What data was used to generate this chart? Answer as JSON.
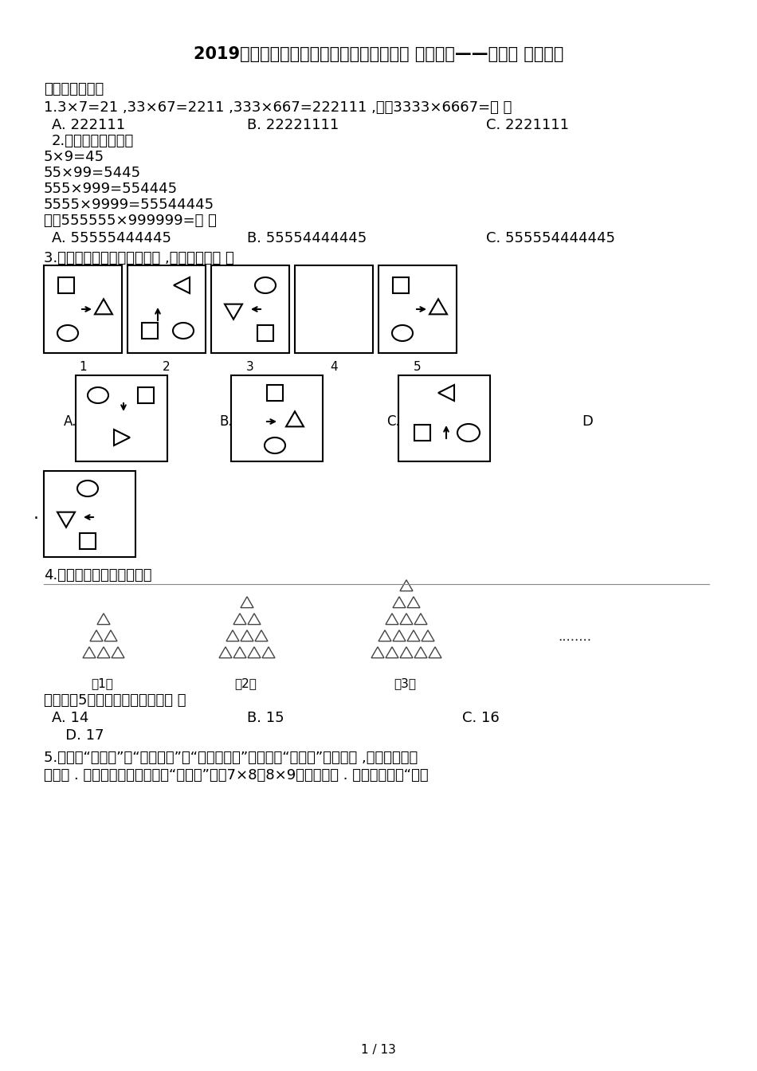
{
  "title": "2019年人教版小学数学六年级上册第八单元 数学广角——数与形 同步训练",
  "section1": "一、单项选择题",
  "q1_text": "1.3×7=21 ,33×67=2211 ,333×667=222111 ,那么3333×6667=［ ］",
  "q1_a": "A. 222111",
  "q1_b": "B. 22221111",
  "q1_c": "C. 2221111",
  "q2_intro": "2.观察下面的算式：",
  "q2_line1": "5×9=45",
  "q2_line2": "55×99=5445",
  "q2_line3": "555×999=554445",
  "q2_line4": "5555×9999=55544445",
  "q2_line5": "那么555555×999999=［ ］",
  "q2_a": "A. 55555444445",
  "q2_b": "B. 55554444445",
  "q2_c": "C. 555554444445",
  "q3_text": "3.根据下面几幅图的排列规律 ,第四幅图是［ ］",
  "q4_text": "4.按如下规律摇放三角形：",
  "q4_answer": "那么第［5］堆三角形的个数为［ ］",
  "q4_a": "A. 14",
  "q4_b": "B. 15",
  "q4_c": "C. 16",
  "q4_d": "   D. 17",
  "q5_line1": "5.法国的“小九九”从“一一得一”到“五五二十五”和我国的“小九九”是一样的 ,后面的就改用",
  "q5_line2": "手势了 . 如图两个图框是用法国“小九九”计算7×8和8×9的两个例如 . 假设用法国的“小九",
  "footer": "1 / 13",
  "bg_color": "#ffffff",
  "text_color": "#000000"
}
